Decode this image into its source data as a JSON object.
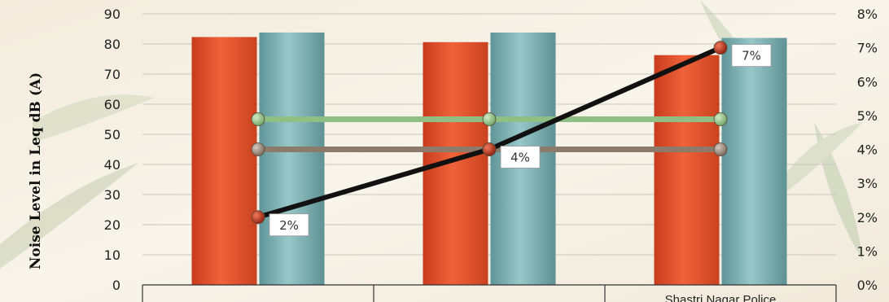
{
  "chart_data": {
    "type": "bar",
    "ylabel": "Noise Level in Leq dB (A)",
    "ylim": [
      0,
      90
    ],
    "yticks": [
      0,
      10,
      20,
      30,
      40,
      50,
      60,
      70,
      80,
      90
    ],
    "y2lim": [
      0,
      8
    ],
    "y2ticks": [
      "0%",
      "1%",
      "2%",
      "3%",
      "4%",
      "5%",
      "6%",
      "7%",
      "8%"
    ],
    "categories": [
      "",
      "",
      "Shastri Nagar Police"
    ],
    "series": [
      {
        "kind": "bar",
        "color": "#e0532f",
        "values": [
          82.3,
          80.6,
          76.3
        ]
      },
      {
        "kind": "bar",
        "color": "#7fb4b6",
        "values": [
          83.8,
          83.8,
          82.0
        ]
      },
      {
        "kind": "line",
        "axis": "y",
        "color": "#8fbf84",
        "values": [
          55,
          55,
          55
        ]
      },
      {
        "kind": "line",
        "axis": "y",
        "color": "#8c7a6b",
        "values": [
          45,
          45,
          45
        ]
      },
      {
        "kind": "line",
        "axis": "y2",
        "color": "#111111",
        "values": [
          2,
          4,
          7
        ],
        "labels": [
          "2%",
          "4%",
          "7%"
        ]
      }
    ],
    "grid": true
  }
}
